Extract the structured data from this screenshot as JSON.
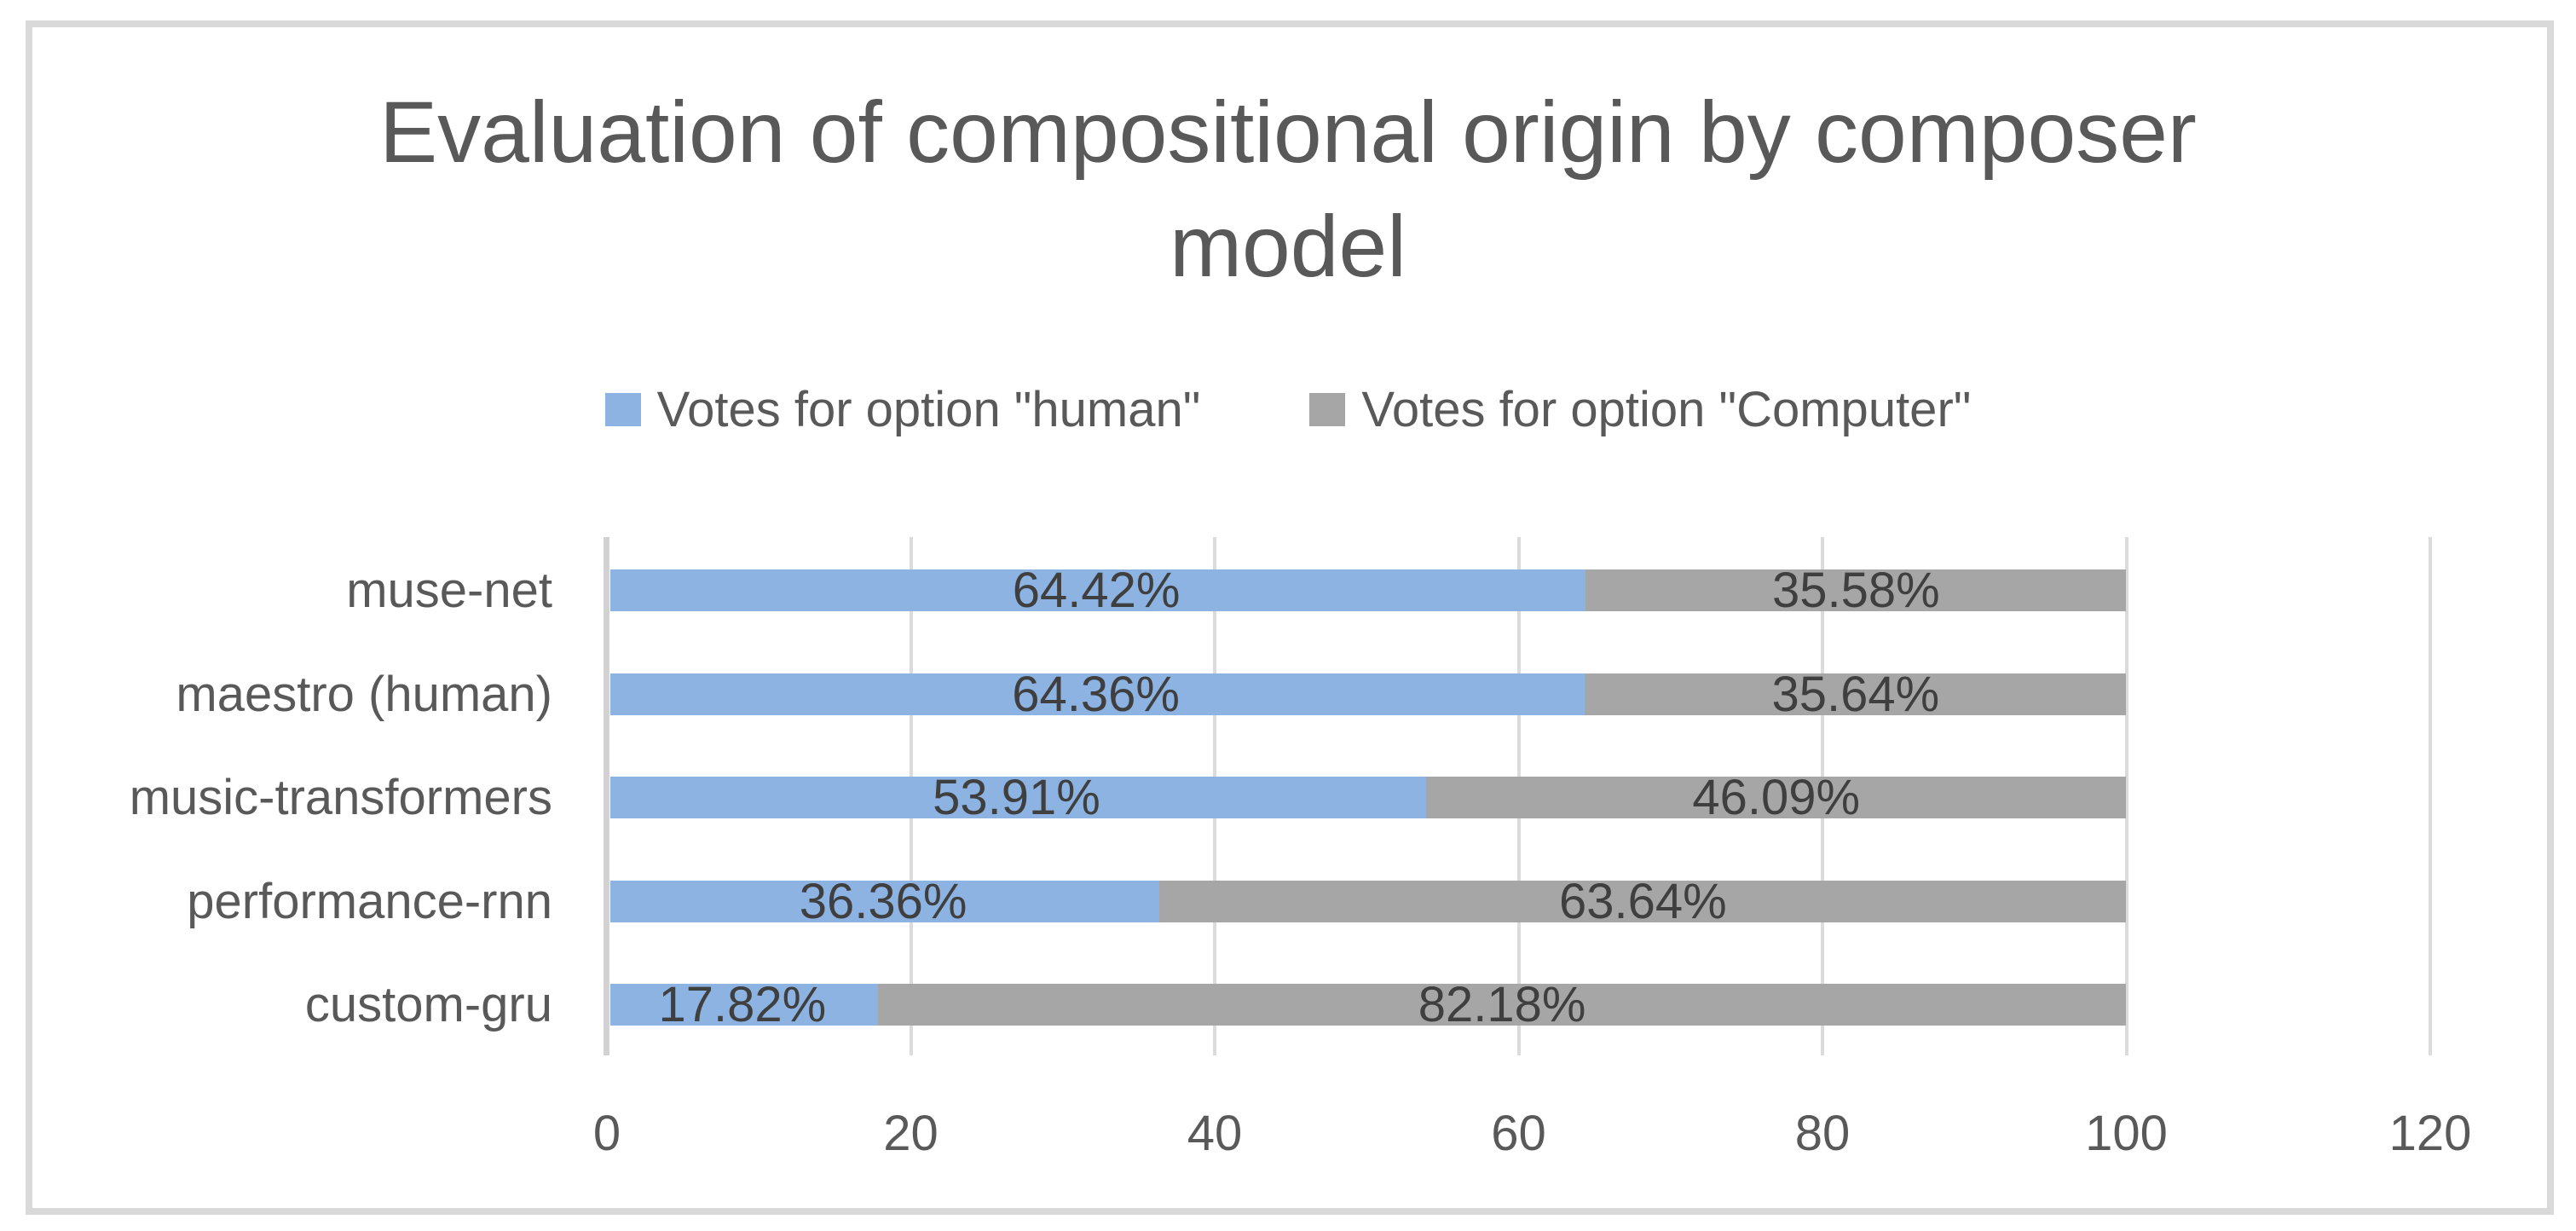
{
  "title": {
    "line1": "Evaluation of compositional origin by composer",
    "line2": "model"
  },
  "colors": {
    "series_human": "#8db3e2",
    "series_computer": "#a6a6a6",
    "frame_border": "#d9d9d9",
    "gridline": "#dbdbdb",
    "axis_line": "#d2d2d2",
    "title_text": "#595959",
    "axis_text": "#595959",
    "data_label_text": "#3f3f3f"
  },
  "chart_data": {
    "type": "bar",
    "orientation": "horizontal",
    "stacked": true,
    "title": "Evaluation of compositional origin by composer model",
    "categories": [
      "muse-net",
      "maestro (human)",
      "music-transformers",
      "performance-rnn",
      "custom-gru"
    ],
    "series": [
      {
        "name": "Votes for option \"human\"",
        "color": "#8db3e2",
        "values": [
          64.42,
          64.36,
          53.91,
          36.36,
          17.82
        ],
        "labels": [
          "64.42%",
          "64.36%",
          "53.91%",
          "36.36%",
          "17.82%"
        ]
      },
      {
        "name": "Votes for option \"Computer\"",
        "color": "#a6a6a6",
        "values": [
          35.58,
          35.64,
          46.09,
          63.64,
          82.18
        ],
        "labels": [
          "35.58%",
          "35.64%",
          "46.09%",
          "63.64%",
          "82.18%"
        ]
      }
    ],
    "xlabel": "",
    "ylabel": "",
    "xlim": [
      0,
      120
    ],
    "xticks": [
      0,
      20,
      40,
      60,
      80,
      100,
      120
    ],
    "xtick_labels": [
      "0",
      "20",
      "40",
      "60",
      "80",
      "100",
      "120"
    ],
    "grid": true,
    "legend_position": "top"
  }
}
